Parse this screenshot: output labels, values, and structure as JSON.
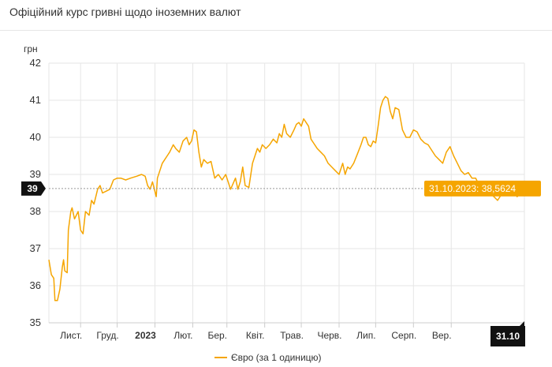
{
  "title": "Офіційний курс гривні щодо іноземних валют",
  "colors": {
    "series": "#f5a500",
    "tooltip_bg": "#f5a500",
    "grid": "#e6e6e6",
    "axis": "#cccccc",
    "tag_bg": "#111111"
  },
  "chart_data": {
    "type": "line",
    "ylabel": "грн",
    "ylim": [
      35,
      42
    ],
    "yticks": [
      35,
      36,
      37,
      38,
      39,
      40,
      41,
      42
    ],
    "xlim": [
      "2022-10-06",
      "2023-10-31"
    ],
    "xticks": [
      {
        "date": "2022-11-01",
        "label": "Лист.",
        "bold": false
      },
      {
        "date": "2022-12-01",
        "label": "Груд.",
        "bold": false
      },
      {
        "date": "2023-01-01",
        "label": "2023",
        "bold": true
      },
      {
        "date": "2023-02-01",
        "label": "Лют.",
        "bold": false
      },
      {
        "date": "2023-03-01",
        "label": "Бер.",
        "bold": false
      },
      {
        "date": "2023-04-01",
        "label": "Квіт.",
        "bold": false
      },
      {
        "date": "2023-05-01",
        "label": "Трав.",
        "bold": false
      },
      {
        "date": "2023-06-01",
        "label": "Черв.",
        "bold": false
      },
      {
        "date": "2023-07-01",
        "label": "Лип.",
        "bold": false
      },
      {
        "date": "2023-08-01",
        "label": "Серп.",
        "bold": false
      },
      {
        "date": "2023-09-01",
        "label": "Вер.",
        "bold": false
      }
    ],
    "series": [
      {
        "name": "Євро (за 1 одиницю)",
        "points": [
          [
            "2022-10-06",
            36.7
          ],
          [
            "2022-10-08",
            36.3
          ],
          [
            "2022-10-10",
            36.2
          ],
          [
            "2022-10-11",
            35.6
          ],
          [
            "2022-10-13",
            35.6
          ],
          [
            "2022-10-15",
            35.9
          ],
          [
            "2022-10-17",
            36.5
          ],
          [
            "2022-10-18",
            36.7
          ],
          [
            "2022-10-19",
            36.4
          ],
          [
            "2022-10-21",
            36.35
          ],
          [
            "2022-10-22",
            37.5
          ],
          [
            "2022-10-24",
            38.0
          ],
          [
            "2022-10-25",
            38.1
          ],
          [
            "2022-10-27",
            37.8
          ],
          [
            "2022-10-30",
            38.0
          ],
          [
            "2022-11-01",
            37.5
          ],
          [
            "2022-11-03",
            37.4
          ],
          [
            "2022-11-05",
            38.0
          ],
          [
            "2022-11-08",
            37.9
          ],
          [
            "2022-11-10",
            38.3
          ],
          [
            "2022-11-12",
            38.2
          ],
          [
            "2022-11-15",
            38.6
          ],
          [
            "2022-11-17",
            38.7
          ],
          [
            "2022-11-19",
            38.5
          ],
          [
            "2022-11-22",
            38.55
          ],
          [
            "2022-11-25",
            38.6
          ],
          [
            "2022-11-28",
            38.85
          ],
          [
            "2022-12-01",
            38.9
          ],
          [
            "2022-12-04",
            38.9
          ],
          [
            "2022-12-08",
            38.85
          ],
          [
            "2022-12-12",
            38.9
          ],
          [
            "2022-12-17",
            38.95
          ],
          [
            "2022-12-21",
            39.0
          ],
          [
            "2022-12-24",
            38.95
          ],
          [
            "2022-12-26",
            38.7
          ],
          [
            "2022-12-28",
            38.6
          ],
          [
            "2022-12-30",
            38.8
          ],
          [
            "2023-01-02",
            38.4
          ],
          [
            "2023-01-03",
            38.9
          ],
          [
            "2023-01-05",
            39.1
          ],
          [
            "2023-01-07",
            39.3
          ],
          [
            "2023-01-09",
            39.4
          ],
          [
            "2023-01-11",
            39.5
          ],
          [
            "2023-01-13",
            39.6
          ],
          [
            "2023-01-16",
            39.8
          ],
          [
            "2023-01-18",
            39.7
          ],
          [
            "2023-01-21",
            39.6
          ],
          [
            "2023-01-24",
            39.9
          ],
          [
            "2023-01-27",
            40.0
          ],
          [
            "2023-01-29",
            39.8
          ],
          [
            "2023-01-31",
            39.9
          ],
          [
            "2023-02-02",
            40.2
          ],
          [
            "2023-02-04",
            40.15
          ],
          [
            "2023-02-06",
            39.6
          ],
          [
            "2023-02-08",
            39.2
          ],
          [
            "2023-02-10",
            39.4
          ],
          [
            "2023-02-13",
            39.3
          ],
          [
            "2023-02-16",
            39.35
          ],
          [
            "2023-02-19",
            38.9
          ],
          [
            "2023-02-22",
            39.0
          ],
          [
            "2023-02-25",
            38.85
          ],
          [
            "2023-02-28",
            39.0
          ],
          [
            "2023-03-02",
            38.8
          ],
          [
            "2023-03-04",
            38.6
          ],
          [
            "2023-03-06",
            38.75
          ],
          [
            "2023-03-08",
            38.9
          ],
          [
            "2023-03-10",
            38.6
          ],
          [
            "2023-03-12",
            38.8
          ],
          [
            "2023-03-14",
            39.2
          ],
          [
            "2023-03-16",
            38.7
          ],
          [
            "2023-03-19",
            38.65
          ],
          [
            "2023-03-22",
            39.3
          ],
          [
            "2023-03-24",
            39.5
          ],
          [
            "2023-03-26",
            39.7
          ],
          [
            "2023-03-28",
            39.6
          ],
          [
            "2023-03-30",
            39.8
          ],
          [
            "2023-04-02",
            39.7
          ],
          [
            "2023-04-05",
            39.8
          ],
          [
            "2023-04-08",
            39.95
          ],
          [
            "2023-04-11",
            39.85
          ],
          [
            "2023-04-13",
            40.1
          ],
          [
            "2023-04-15",
            40.0
          ],
          [
            "2023-04-17",
            40.35
          ],
          [
            "2023-04-19",
            40.1
          ],
          [
            "2023-04-22",
            40.0
          ],
          [
            "2023-04-25",
            40.2
          ],
          [
            "2023-04-27",
            40.35
          ],
          [
            "2023-04-29",
            40.4
          ],
          [
            "2023-05-01",
            40.3
          ],
          [
            "2023-05-03",
            40.5
          ],
          [
            "2023-05-05",
            40.4
          ],
          [
            "2023-05-07",
            40.3
          ],
          [
            "2023-05-09",
            39.95
          ],
          [
            "2023-05-11",
            39.85
          ],
          [
            "2023-05-14",
            39.7
          ],
          [
            "2023-05-17",
            39.6
          ],
          [
            "2023-05-20",
            39.5
          ],
          [
            "2023-05-23",
            39.3
          ],
          [
            "2023-05-26",
            39.2
          ],
          [
            "2023-05-29",
            39.1
          ],
          [
            "2023-06-01",
            39.0
          ],
          [
            "2023-06-04",
            39.3
          ],
          [
            "2023-06-06",
            39.0
          ],
          [
            "2023-06-08",
            39.2
          ],
          [
            "2023-06-10",
            39.15
          ],
          [
            "2023-06-13",
            39.3
          ],
          [
            "2023-06-16",
            39.55
          ],
          [
            "2023-06-19",
            39.8
          ],
          [
            "2023-06-21",
            40.0
          ],
          [
            "2023-06-23",
            40.0
          ],
          [
            "2023-06-25",
            39.8
          ],
          [
            "2023-06-27",
            39.75
          ],
          [
            "2023-06-29",
            39.9
          ],
          [
            "2023-07-01",
            39.85
          ],
          [
            "2023-07-03",
            40.3
          ],
          [
            "2023-07-05",
            40.8
          ],
          [
            "2023-07-07",
            41.0
          ],
          [
            "2023-07-09",
            41.1
          ],
          [
            "2023-07-11",
            41.05
          ],
          [
            "2023-07-13",
            40.7
          ],
          [
            "2023-07-15",
            40.5
          ],
          [
            "2023-07-17",
            40.8
          ],
          [
            "2023-07-20",
            40.75
          ],
          [
            "2023-07-23",
            40.2
          ],
          [
            "2023-07-26",
            40.0
          ],
          [
            "2023-07-29",
            40.0
          ],
          [
            "2023-08-01",
            40.2
          ],
          [
            "2023-08-04",
            40.15
          ],
          [
            "2023-08-07",
            39.95
          ],
          [
            "2023-08-10",
            39.85
          ],
          [
            "2023-08-13",
            39.8
          ],
          [
            "2023-08-16",
            39.65
          ],
          [
            "2023-08-19",
            39.5
          ],
          [
            "2023-08-22",
            39.4
          ],
          [
            "2023-08-25",
            39.3
          ],
          [
            "2023-08-28",
            39.6
          ],
          [
            "2023-08-31",
            39.75
          ],
          [
            "2023-09-03",
            39.5
          ],
          [
            "2023-09-06",
            39.3
          ],
          [
            "2023-09-09",
            39.1
          ],
          [
            "2023-09-12",
            39.0
          ],
          [
            "2023-09-15",
            39.05
          ],
          [
            "2023-09-18",
            38.9
          ],
          [
            "2023-09-21",
            38.9
          ],
          [
            "2023-09-24",
            38.7
          ],
          [
            "2023-09-27",
            38.55
          ],
          [
            "2023-09-30",
            38.5
          ],
          [
            "2023-10-03",
            38.5
          ],
          [
            "2023-10-06",
            38.4
          ],
          [
            "2023-10-09",
            38.3
          ],
          [
            "2023-10-12",
            38.45
          ],
          [
            "2023-10-15",
            38.6
          ],
          [
            "2023-10-18",
            38.5
          ],
          [
            "2023-10-21",
            38.7
          ],
          [
            "2023-10-23",
            38.55
          ],
          [
            "2023-10-25",
            38.4
          ],
          [
            "2023-10-28",
            38.5
          ],
          [
            "2023-10-31",
            38.5624
          ]
        ]
      }
    ],
    "reference_line": {
      "value": 38.62,
      "label": "39"
    },
    "tooltip": {
      "date": "2023-10-31",
      "value": 38.5624,
      "text": "31.10.2023: 38,5624"
    },
    "x_end_tag": "31.10",
    "legend": {
      "position": "bottom-center",
      "label": "Євро (за 1 одиницю)"
    },
    "grid": true
  }
}
